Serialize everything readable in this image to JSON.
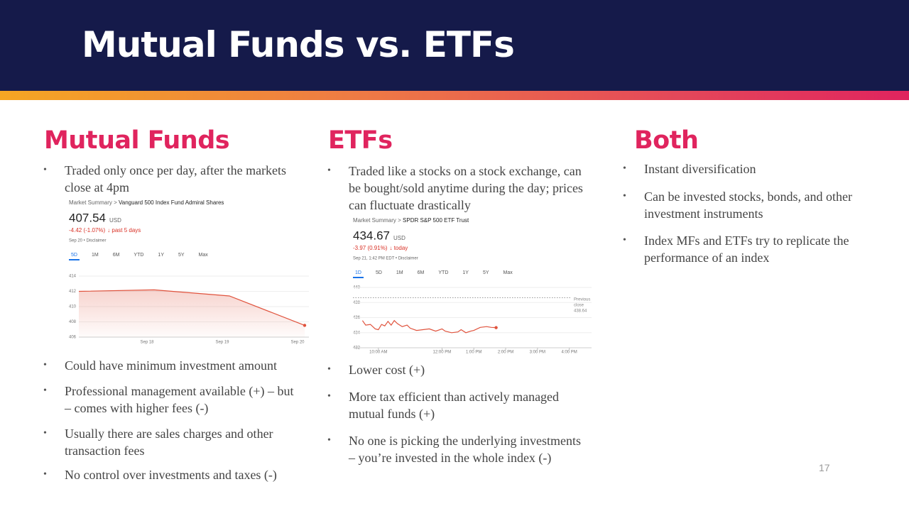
{
  "header": {
    "title": "Mutual Funds vs. ETFs"
  },
  "columns": [
    {
      "heading": "Mutual Funds",
      "bullets_top": [
        "Traded only once per day, after the markets close at 4pm"
      ],
      "chart": {
        "type": "line",
        "breadcrumb": "Market Summary > ",
        "fund": "Vanguard 500 Index Fund Admiral Shares",
        "price": 407.54,
        "currency": "USD",
        "change": "-4.42 (-1.07%)",
        "period": "↓ past 5 days",
        "date": "Sep 20 • Disclaimer",
        "tabs": [
          "5D",
          "1M",
          "6M",
          "YTD",
          "1Y",
          "5Y",
          "Max"
        ],
        "active_tab": 0,
        "categories": [
          null,
          "Sep 18",
          "Sep 19",
          "Sep 20"
        ],
        "values": [
          412,
          412.2,
          411.4,
          407.54
        ],
        "ylim": [
          406,
          414
        ],
        "yticks": [
          406,
          408,
          410,
          412,
          414
        ],
        "color": "#e0533d",
        "area": true
      },
      "bullets_bottom": [
        "Could have minimum investment amount",
        "Professional management available (+) – but – comes with higher fees (-)",
        "Usually there are sales charges and other transaction fees",
        "No control over investments and taxes (-)"
      ]
    },
    {
      "heading": "ETFs",
      "bullets_top": [
        "Traded like a stocks on a stock exchange, can be bought/sold anytime during the day; prices can fluctuate drastically"
      ],
      "chart": {
        "type": "line",
        "breadcrumb": "Market Summary > ",
        "fund": "SPDR S&P 500 ETF Trust",
        "price": 434.67,
        "currency": "USD",
        "change": "-3.97 (0.91%)",
        "period": "↓ today",
        "date": "Sep 21, 1:42 PM EDT • Disclaimer",
        "tabs": [
          "1D",
          "5D",
          "1M",
          "6M",
          "YTD",
          "1Y",
          "5Y",
          "Max"
        ],
        "active_tab": 0,
        "x": [
          9.5,
          9.6,
          9.75,
          9.9,
          10.0,
          10.1,
          10.2,
          10.3,
          10.4,
          10.5,
          10.6,
          10.75,
          10.9,
          11.0,
          11.2,
          11.4,
          11.6,
          11.8,
          12.0,
          12.1,
          12.3,
          12.5,
          12.6,
          12.75,
          12.9,
          13.0,
          13.2,
          13.4,
          13.55,
          13.7
        ],
        "values": [
          435.6,
          435.0,
          435.1,
          434.5,
          434.4,
          435.1,
          434.9,
          435.5,
          435.0,
          435.6,
          435.2,
          434.8,
          435.0,
          434.6,
          434.3,
          434.4,
          434.5,
          434.2,
          434.5,
          434.2,
          434.0,
          434.1,
          434.4,
          434.0,
          434.2,
          434.3,
          434.7,
          434.8,
          434.7,
          434.67
        ],
        "xlim": [
          9.2,
          16.7
        ],
        "xticks": [
          {
            "value": 10,
            "label": "10:00 AM"
          },
          {
            "value": 12,
            "label": "12:00 PM"
          },
          {
            "value": 13,
            "label": "1:00 PM"
          },
          {
            "value": 14,
            "label": "2:00 PM"
          },
          {
            "value": 15,
            "label": "3:00 PM"
          },
          {
            "value": 16,
            "label": "4:00 PM"
          }
        ],
        "ylim": [
          432,
          440
        ],
        "yticks": [
          432,
          434,
          436,
          438,
          440
        ],
        "color": "#e0533d",
        "area": false,
        "previous_close_label": "Previous close",
        "previous_close": 438.64
      },
      "bullets_bottom": [
        "Lower cost (+)",
        "More tax efficient than actively managed mutual funds (+)",
        "No one is picking the underlying investments – you’re invested in the whole index (-)"
      ]
    },
    {
      "heading": "Both",
      "bullets_top": [
        "Instant diversification",
        "Can be invested stocks, bonds, and other investment instruments",
        "Index MFs and ETFs try to replicate the performance of an index"
      ],
      "bullets_bottom": []
    }
  ],
  "page_number": "17"
}
